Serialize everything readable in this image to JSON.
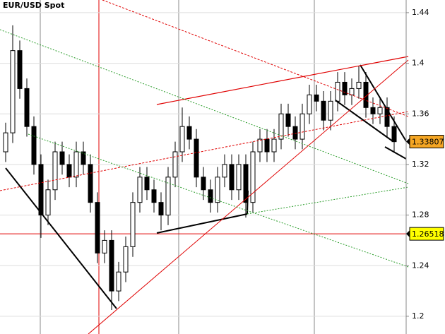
{
  "chart_data": {
    "type": "candlestick",
    "title": "EUR/USD Spot",
    "open": [
      1.33,
      1.345,
      1.41,
      1.38,
      1.35,
      1.32,
      1.28,
      1.3,
      1.33,
      1.32,
      1.31,
      1.33,
      1.32,
      1.29,
      1.25,
      1.26,
      1.22,
      1.235,
      1.255,
      1.29,
      1.31,
      1.3,
      1.29,
      1.28,
      1.31,
      1.33,
      1.35,
      1.34,
      1.31,
      1.3,
      1.29,
      1.31,
      1.32,
      1.3,
      1.32,
      1.29,
      1.33,
      1.34,
      1.33,
      1.34,
      1.36,
      1.35,
      1.34,
      1.36,
      1.375,
      1.37,
      1.355,
      1.37,
      1.385,
      1.375,
      1.38,
      1.385,
      1.365,
      1.36,
      1.365,
      1.35
    ],
    "high": [
      1.353,
      1.43,
      1.418,
      1.388,
      1.358,
      1.328,
      1.308,
      1.338,
      1.338,
      1.328,
      1.338,
      1.338,
      1.328,
      1.298,
      1.268,
      1.268,
      1.243,
      1.263,
      1.298,
      1.318,
      1.318,
      1.308,
      1.298,
      1.318,
      1.338,
      1.365,
      1.358,
      1.348,
      1.318,
      1.308,
      1.318,
      1.328,
      1.328,
      1.328,
      1.328,
      1.338,
      1.348,
      1.348,
      1.348,
      1.368,
      1.368,
      1.358,
      1.368,
      1.383,
      1.383,
      1.378,
      1.378,
      1.393,
      1.393,
      1.388,
      1.398,
      1.393,
      1.373,
      1.373,
      1.373,
      1.358
    ],
    "low": [
      1.322,
      1.337,
      1.372,
      1.342,
      1.312,
      1.262,
      1.272,
      1.292,
      1.312,
      1.302,
      1.302,
      1.312,
      1.282,
      1.242,
      1.242,
      1.205,
      1.212,
      1.227,
      1.247,
      1.282,
      1.292,
      1.282,
      1.268,
      1.272,
      1.302,
      1.322,
      1.332,
      1.302,
      1.292,
      1.282,
      1.282,
      1.302,
      1.292,
      1.292,
      1.278,
      1.282,
      1.322,
      1.322,
      1.322,
      1.332,
      1.342,
      1.332,
      1.332,
      1.352,
      1.362,
      1.347,
      1.347,
      1.362,
      1.367,
      1.367,
      1.372,
      1.357,
      1.352,
      1.352,
      1.342,
      1.33
    ],
    "close": [
      1.345,
      1.41,
      1.38,
      1.35,
      1.32,
      1.28,
      1.3,
      1.33,
      1.32,
      1.31,
      1.33,
      1.32,
      1.29,
      1.25,
      1.26,
      1.22,
      1.235,
      1.255,
      1.29,
      1.31,
      1.3,
      1.29,
      1.28,
      1.31,
      1.33,
      1.35,
      1.34,
      1.31,
      1.3,
      1.29,
      1.31,
      1.32,
      1.3,
      1.32,
      1.29,
      1.33,
      1.34,
      1.33,
      1.34,
      1.36,
      1.35,
      1.34,
      1.36,
      1.375,
      1.37,
      1.355,
      1.37,
      1.385,
      1.375,
      1.38,
      1.385,
      1.365,
      1.36,
      1.365,
      1.35,
      1.338
    ],
    "up_color": "#ffffff",
    "down_color": "#000000",
    "ylim": [
      1.186,
      1.45
    ],
    "yticks": [
      1.2,
      1.24,
      1.28,
      1.32,
      1.36,
      1.4,
      1.44
    ],
    "price_markers": [
      {
        "value": 1.33807,
        "color": "#f5a623"
      },
      {
        "value": 1.26518,
        "color": "#ffff00"
      }
    ]
  }
}
